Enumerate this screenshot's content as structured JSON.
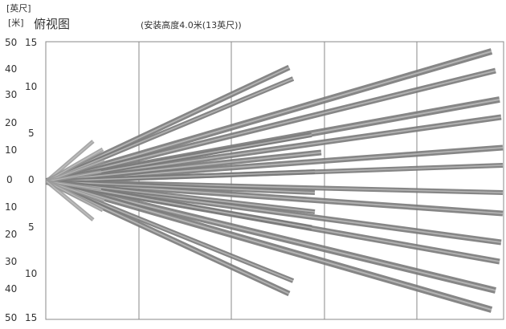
{
  "header": {
    "unit_feet": "[英尺]",
    "unit_meter": "[米]",
    "title": "俯视图",
    "subtitle": "(安装高度4.0米(13英尺))"
  },
  "ticks": {
    "feet": [
      "50",
      "40",
      "30",
      "20",
      "10",
      "0",
      "10",
      "20",
      "30",
      "40",
      "50"
    ],
    "meters": [
      "15",
      "10",
      "5",
      "0",
      "5",
      "10",
      "15"
    ]
  },
  "colors": {
    "grid": "#888888",
    "beam_long": "#7a7a7a",
    "beam_short": "#9a9a9a",
    "text": "#333333"
  }
}
